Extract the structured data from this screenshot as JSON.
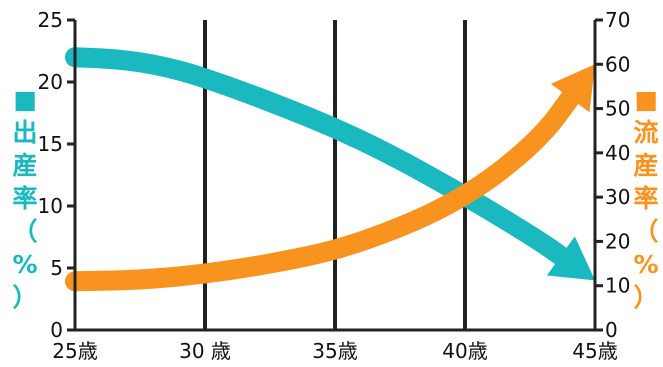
{
  "chart_data": {
    "type": "line",
    "x": [
      25,
      27,
      29,
      31,
      33,
      35,
      37,
      39,
      41,
      43,
      45
    ],
    "x_tick_labels": [
      "25歳",
      "30 歳",
      "35歳",
      "40歳",
      "45歳"
    ],
    "xlim": [
      25,
      45
    ],
    "grid": "vertical",
    "y_left": {
      "title_chars": [
        "■",
        "出",
        "産",
        "率",
        "（",
        "%",
        "）"
      ],
      "ylim": [
        0,
        25
      ],
      "ticks": [
        "0",
        "5",
        "10",
        "15",
        "20",
        "25"
      ]
    },
    "y_right": {
      "title_chars": [
        "■",
        "流",
        "産",
        "率",
        "（",
        "%",
        "）"
      ],
      "ylim": [
        0,
        70
      ],
      "ticks": [
        "0",
        "10",
        "20",
        "30",
        "40",
        "50",
        "60",
        "70"
      ]
    },
    "series": [
      {
        "axis": "left",
        "color": "#1ab8bf",
        "values": [
          22.0,
          21.8,
          21.0,
          19.6,
          18.0,
          16.3,
          14.3,
          12.0,
          9.6,
          7.0,
          4.0
        ]
      },
      {
        "axis": "right",
        "color": "#f7931e",
        "values": [
          11.0,
          11.2,
          12.0,
          13.5,
          15.5,
          18.0,
          22.0,
          27.0,
          34.0,
          44.0,
          60.0
        ]
      }
    ]
  }
}
